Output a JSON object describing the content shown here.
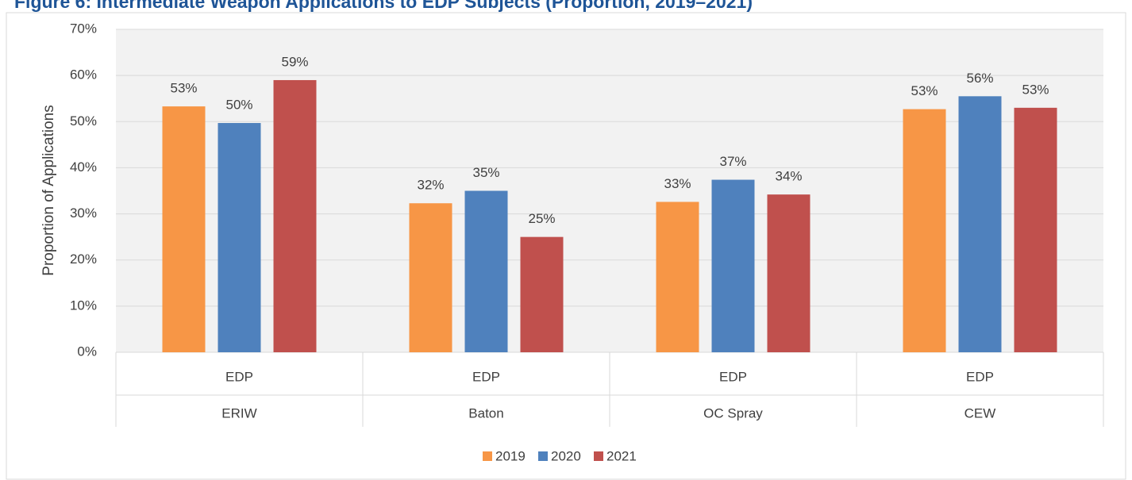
{
  "chart_data": {
    "type": "bar",
    "title": "Figure 6: Intermediate Weapon Applications to EDP Subjects (Proportion, 2019–2021)",
    "y_label": "Proportion of Applications",
    "categories": [
      "ERIW",
      "Baton",
      "OC Spray",
      "CEW"
    ],
    "subcategories": [
      "EDP",
      "EDP",
      "EDP",
      "EDP"
    ],
    "series": [
      {
        "name": "2019",
        "color": "#f79646",
        "values": [
          53.3,
          32.3,
          32.6,
          52.7
        ],
        "value_labels": [
          "53%",
          "32%",
          "33%",
          "53%"
        ]
      },
      {
        "name": "2020",
        "color": "#4f81bd",
        "values": [
          49.7,
          35.0,
          37.4,
          55.5
        ],
        "value_labels": [
          "50%",
          "35%",
          "37%",
          "56%"
        ]
      },
      {
        "name": "2021",
        "color": "#c0504d",
        "values": [
          59.0,
          25.0,
          34.2,
          53.0
        ],
        "value_labels": [
          "59%",
          "25%",
          "34%",
          "53%"
        ]
      }
    ],
    "ylim": [
      0,
      70
    ],
    "yticks": [
      {
        "value": 0,
        "label": "0%"
      },
      {
        "value": 10,
        "label": "10%"
      },
      {
        "value": 20,
        "label": "20%"
      },
      {
        "value": 30,
        "label": "30%"
      },
      {
        "value": 40,
        "label": "40%"
      },
      {
        "value": 50,
        "label": "50%"
      },
      {
        "value": 60,
        "label": "60%"
      },
      {
        "value": 70,
        "label": "70%"
      }
    ],
    "grid": true,
    "legend": "bottom"
  }
}
